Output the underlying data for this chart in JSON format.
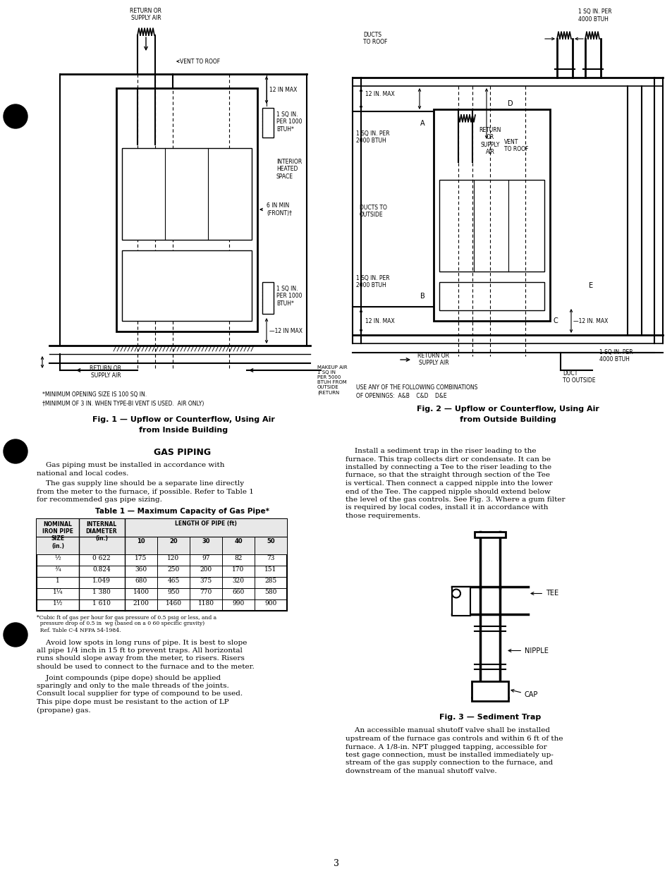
{
  "background_color": "#ffffff",
  "page_number": "3",
  "fig1_caption_line1": "Fig. 1 — Upflow or Counterflow, Using Air",
  "fig1_caption_line2": "from Inside Building",
  "fig2_caption_line1": "Fig. 2 — Upflow or Counterflow, Using Air",
  "fig2_caption_line2": "from Outside Building",
  "fig3_caption": "Fig. 3 — Sediment Trap",
  "section_title": "GAS PIPING",
  "para1_indent": "    Gas piping must be installed in accordance with",
  "para1_cont": "national and local codes.",
  "para2_indent": "    The gas supply line should be a separate line directly",
  "para2_cont1": "from the meter to the furnace, if possible. Refer to Table 1",
  "para2_cont2": "for recommended gas pipe sizing.",
  "table_title": "Table 1 — Maximum Capacity of Gas Pipe*",
  "col_hdr1": "NOMINAL\nIRON PIPE\nSIZE\n(in.)",
  "col_hdr2": "INTERNAL\nDIAMETER\n(in.)",
  "col_hdr3": "LENGTH OF PIPE (ft)",
  "sub_hdrs": [
    "10",
    "20",
    "30",
    "40",
    "50"
  ],
  "table_rows": [
    [
      "½",
      "0 622",
      "175",
      "120",
      "97",
      "82",
      "73"
    ],
    [
      "¾",
      "0.824",
      "360",
      "250",
      "200",
      "170",
      "151"
    ],
    [
      "1",
      "1.049",
      "680",
      "465",
      "375",
      "320",
      "285"
    ],
    [
      "1¼",
      "1 380",
      "1400",
      "950",
      "770",
      "660",
      "580"
    ],
    [
      "1½",
      "1 610",
      "2100",
      "1460",
      "1180",
      "990",
      "900"
    ]
  ],
  "table_fn1": "*Cubic ft of gas per hour for gas pressure of 0.5 psig or less, and a",
  "table_fn2": "  pressure drop of 0.5 in  wg (based on a 0 60 specific gravity)",
  "table_fn3": "  Ref. Table C-4 NFPA 54-1984.",
  "para3_indent": "    Avoid low spots in long runs of pipe. It is best to slope",
  "para3_c1": "all pipe 1/4 inch in 15 ft to prevent traps. All horizontal",
  "para3_c2": "runs should slope away from the meter, to risers. Risers",
  "para3_c3": "should be used to connect to the furnace and to the meter.",
  "para4_indent": "    Joint compounds (pipe dope) should be applied",
  "para4_c1": "sparingly and only to the male threads of the joints.",
  "para4_c2": "Consult local supplier for type of compound to be used.",
  "para4_c3": "This pipe dope must be resistant to the action of LP",
  "para4_c4": "(propane) gas.",
  "rp1_line1": "    Install a sediment trap in the riser leading to the",
  "rp1_line2": "furnace. This trap collects dirt or condensate. It can be",
  "rp1_line3": "installed by connecting a Tee to the riser leading to the",
  "rp1_line4": "furnace, so that the straight through section of the Tee",
  "rp1_line5": "is vertical. Then connect a capped nipple into the lower",
  "rp1_line6": "end of the Tee. The capped nipple should extend below",
  "rp1_line7": "the level of the gas controls. See Fig. 3. Where a gum filter",
  "rp1_line8": "is required by local codes, install it in accordance with",
  "rp1_line9": "those requirements.",
  "rp2_line1": "    An accessible manual shutoff valve shall be installed",
  "rp2_line2": "upstream of the furnace gas controls and within 6 ft of the",
  "rp2_line3": "furnace. A 1/8-in. NPT plugged tapping, accessible for",
  "rp2_line4": "test gage connection, must be installed immediately up-",
  "rp2_line5": "stream of the gas supply connection to the furnace, and",
  "rp2_line6": "downstream of the manual shutoff valve.",
  "fn1": "*MINIMUM OPENING SIZE IS 100 SQ IN.",
  "fn2": "†MINIMUM OF 3 IN. WHEN TYPE-BI VENT IS USED.  AIR ONLY)",
  "fig2_note1": "USE ANY OF THE FOLLOWING COMBINATIONS",
  "fig2_note2": "OF OPENINGS:  A&B    C&D    D&E"
}
